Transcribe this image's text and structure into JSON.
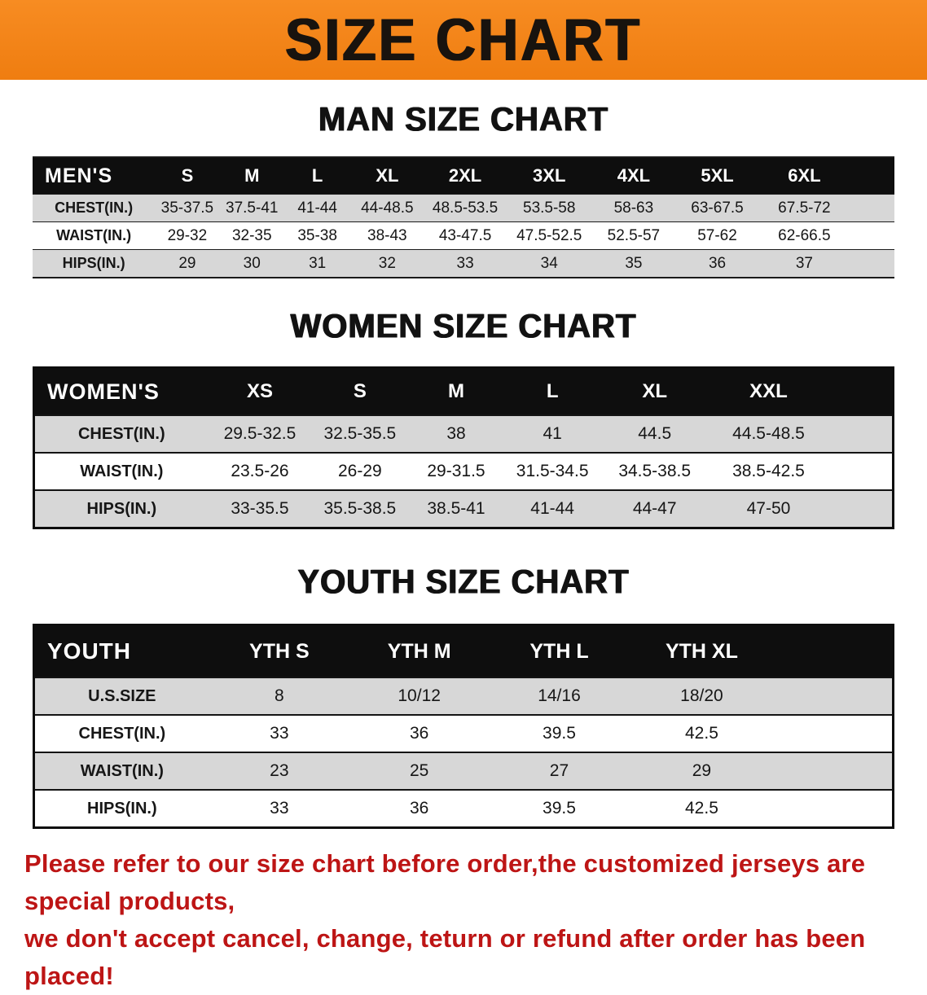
{
  "banner": {
    "title": "SIZE CHART"
  },
  "sections": [
    {
      "heading": "MAN SIZE CHART",
      "table": {
        "header": [
          "MEN'S",
          "S",
          "M",
          "L",
          "XL",
          "2XL",
          "3XL",
          "4XL",
          "5XL",
          "6XL"
        ],
        "rows": [
          [
            "CHEST(IN.)",
            "35-37.5",
            "37.5-41",
            "41-44",
            "44-48.5",
            "48.5-53.5",
            "53.5-58",
            "58-63",
            "63-67.5",
            "67.5-72"
          ],
          [
            "WAIST(IN.)",
            "29-32",
            "32-35",
            "35-38",
            "38-43",
            "43-47.5",
            "47.5-52.5",
            "52.5-57",
            "57-62",
            "62-66.5"
          ],
          [
            "HIPS(IN.)",
            "29",
            "30",
            "31",
            "32",
            "33",
            "34",
            "35",
            "36",
            "37"
          ]
        ]
      }
    },
    {
      "heading": "WOMEN SIZE CHART",
      "table": {
        "header": [
          "WOMEN'S",
          "XS",
          "S",
          "M",
          "L",
          "XL",
          "XXL"
        ],
        "rows": [
          [
            "CHEST(IN.)",
            "29.5-32.5",
            "32.5-35.5",
            "38",
            "41",
            "44.5",
            "44.5-48.5"
          ],
          [
            "WAIST(IN.)",
            "23.5-26",
            "26-29",
            "29-31.5",
            "31.5-34.5",
            "34.5-38.5",
            "38.5-42.5"
          ],
          [
            "HIPS(IN.)",
            "33-35.5",
            "35.5-38.5",
            "38.5-41",
            "41-44",
            "44-47",
            "47-50"
          ]
        ]
      }
    },
    {
      "heading": "YOUTH SIZE CHART",
      "table": {
        "header": [
          "YOUTH",
          "YTH S",
          "YTH M",
          "YTH L",
          "YTH XL"
        ],
        "rows": [
          [
            "U.S.SIZE",
            "8",
            "10/12",
            "14/16",
            "18/20"
          ],
          [
            "CHEST(IN.)",
            "33",
            "36",
            "39.5",
            "42.5"
          ],
          [
            "WAIST(IN.)",
            "23",
            "25",
            "27",
            "29"
          ],
          [
            "HIPS(IN.)",
            "33",
            "36",
            "39.5",
            "42.5"
          ]
        ]
      }
    }
  ],
  "footer": {
    "line1": "Please refer to our size chart before order,the customized jerseys are special products,",
    "line2": "we don't accept cancel, change, teturn or refund after order has been placed!"
  },
  "colors": {
    "banner_bg": "#f5831b",
    "banner_text": "#18130e",
    "table_header_bg": "#0e0e0e",
    "table_header_text": "#ffffff",
    "alt_row_bg": "#d7d7d7",
    "disclaimer_text": "#bd1515"
  }
}
